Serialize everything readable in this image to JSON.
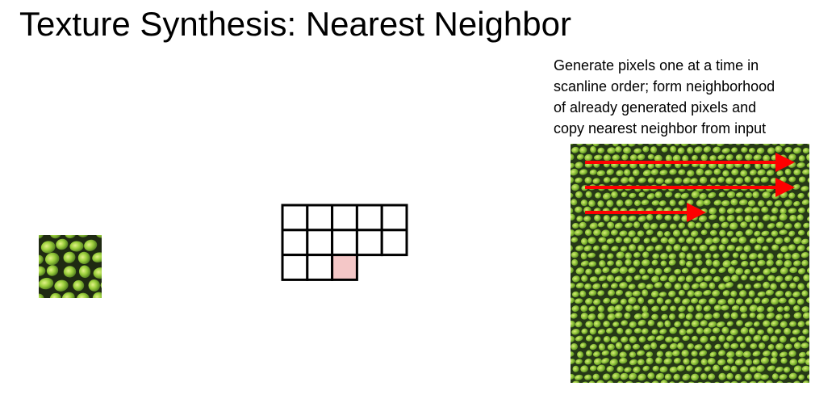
{
  "slide": {
    "title": "Texture Synthesis: Nearest Neighbor",
    "caption_lines": [
      "Generate pixels one at a time in",
      "scanline order; form neighborhood",
      "of already generated pixels and",
      "copy nearest neighbor from input"
    ]
  },
  "colors": {
    "texture_dark": "#1f2a12",
    "texture_mid": "#4d7a1f",
    "texture_light": "#9bcf3c",
    "texture_highlight": "#d8ec7a",
    "arrow": "#ff0000",
    "target_pixel": "#f4c7c7",
    "grid_line": "#000000"
  },
  "icons": {
    "input_texture": "green-scale-texture-patch",
    "neighborhood": "pixel-neighborhood-grid",
    "output_texture": "synthesized-green-scale-texture",
    "scan_arrow": "right-arrow"
  }
}
